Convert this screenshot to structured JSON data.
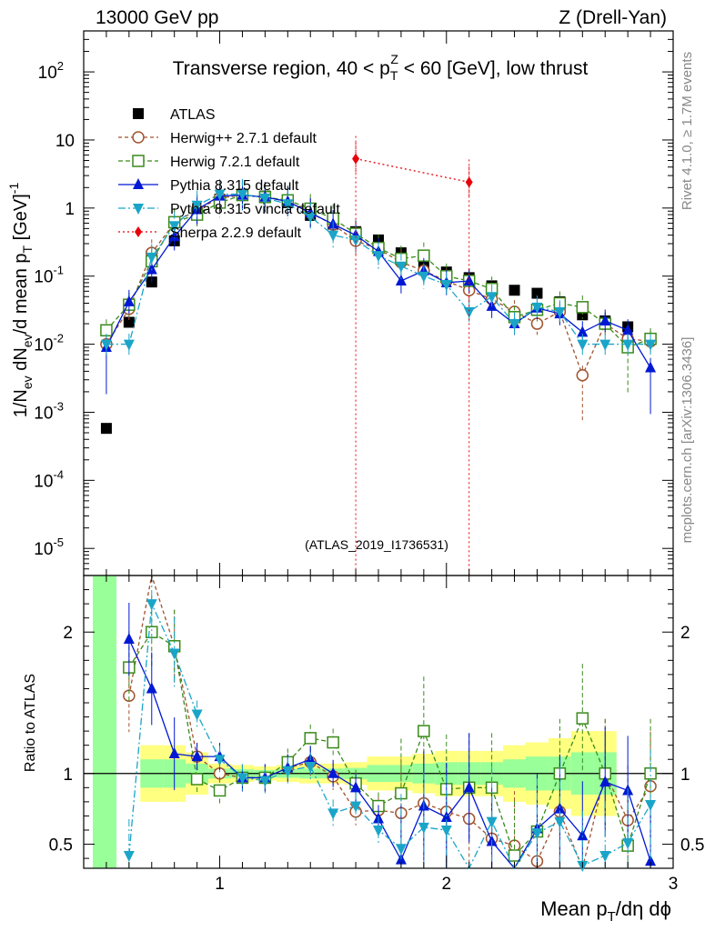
{
  "header": {
    "left": "13000 GeV pp",
    "right": "Z (Drell-Yan)"
  },
  "side_labels": {
    "rivet": "Rivet 4.1.0, ≥ 1.7M events",
    "mcplots": "mcplots.cern.ch [arXiv:1306.3436]"
  },
  "chart_data": {
    "type": "scatter",
    "title": "Transverse region, 40 < pT^Z < 60 [GeV], low thrust",
    "analysis_tag": "(ATLAS_2019_I1736531)",
    "xlabel": "Mean pT/dη dφ",
    "ylabel_main": "1/Nev dNev/d mean pT [GeV]^-1",
    "ylabel_ratio": "Ratio to ATLAS",
    "xlim": [
      0.4,
      3.0
    ],
    "ylim_main": [
      4e-06,
      400
    ],
    "ylim_ratio": [
      0.33,
      2.4
    ],
    "yscale_main": "log",
    "x_ticks": [
      "1",
      "2",
      "3"
    ],
    "y_ticks_main": [
      "10^-5",
      "10^-4",
      "10^-3",
      "10^-2",
      "10^-1",
      "1",
      "10",
      "10^2"
    ],
    "y_ticks_ratio": [
      "0.5",
      "1",
      "2"
    ],
    "x": [
      0.5,
      0.6,
      0.7,
      0.8,
      0.9,
      1.0,
      1.1,
      1.2,
      1.3,
      1.4,
      1.5,
      1.6,
      1.7,
      1.8,
      1.9,
      2.0,
      2.1,
      2.2,
      2.3,
      2.4,
      2.5,
      2.6,
      2.7,
      2.8,
      2.9
    ],
    "series": [
      {
        "name": "ATLAS",
        "color": "#000000",
        "marker": "square",
        "values": [
          0.00058,
          0.021,
          0.082,
          0.33,
          0.85,
          1.35,
          1.6,
          1.5,
          1.2,
          0.78,
          0.58,
          0.45,
          0.34,
          0.22,
          0.155,
          0.115,
          0.095,
          0.072,
          0.062,
          0.056,
          0.042,
          0.027,
          0.022,
          0.018,
          0.012
        ],
        "ratio": []
      },
      {
        "name": "Herwig++ 2.7.1 default",
        "color": "#a0522d",
        "marker": "open-circle",
        "values": [
          0.01,
          0.033,
          0.22,
          0.6,
          0.95,
          1.4,
          1.55,
          1.45,
          1.25,
          0.85,
          0.57,
          0.33,
          0.25,
          0.16,
          0.12,
          0.085,
          0.062,
          0.046,
          0.03,
          0.02,
          0.03,
          0.0035,
          0.02,
          0.012,
          0.011
        ],
        "ratio": [
          null,
          1.55,
          2.6,
          1.9,
          1.12,
          1.0,
          0.97,
          0.97,
          1.04,
          1.08,
          0.98,
          0.73,
          0.74,
          0.72,
          0.79,
          0.73,
          0.68,
          0.54,
          0.49,
          0.38,
          0.73,
          0.13,
          1.0,
          0.67,
          0.91
        ]
      },
      {
        "name": "Herwig 7.2.1 default",
        "color": "#3a8a1a",
        "marker": "open-square",
        "values": [
          0.016,
          0.038,
          0.165,
          0.62,
          0.8,
          1.2,
          1.55,
          1.45,
          1.3,
          0.98,
          0.7,
          0.42,
          0.26,
          0.18,
          0.2,
          0.1,
          0.085,
          0.065,
          0.025,
          0.032,
          0.04,
          0.035,
          0.02,
          0.009,
          0.012
        ],
        "ratio": [
          null,
          1.75,
          2.0,
          1.9,
          0.96,
          0.88,
          0.97,
          0.97,
          1.08,
          1.25,
          1.22,
          0.93,
          0.77,
          0.86,
          1.3,
          0.89,
          0.9,
          0.9,
          0.42,
          0.59,
          1.0,
          1.39,
          1.0,
          0.49,
          1.0
        ]
      },
      {
        "name": "Pythia 8.315 default",
        "color": "#0018d4",
        "marker": "triangle-up",
        "values": [
          0.009,
          0.042,
          0.125,
          0.38,
          0.95,
          1.5,
          1.55,
          1.45,
          1.25,
          0.85,
          0.58,
          0.4,
          0.23,
          0.085,
          0.12,
          0.08,
          0.085,
          0.036,
          0.02,
          0.034,
          0.028,
          0.015,
          0.022,
          0.016,
          0.0045
        ],
        "ratio": [
          null,
          1.95,
          1.6,
          1.14,
          1.12,
          1.12,
          0.97,
          0.97,
          1.04,
          1.1,
          1.0,
          0.9,
          0.68,
          0.39,
          0.77,
          0.69,
          0.9,
          0.52,
          0.32,
          0.61,
          0.75,
          0.56,
          0.94,
          0.88,
          0.38
        ]
      },
      {
        "name": "Pythia 8.315 vincia default",
        "color": "#1aa5c8",
        "marker": "triangle-down",
        "values": [
          0.01,
          0.01,
          0.19,
          0.55,
          1.1,
          1.6,
          1.6,
          1.4,
          1.15,
          0.75,
          0.4,
          0.34,
          0.2,
          0.14,
          0.1,
          0.075,
          0.03,
          0.05,
          0.02,
          0.035,
          0.03,
          0.01,
          0.01,
          0.01,
          0.01
        ],
        "ratio": [
          null,
          0.42,
          2.2,
          1.85,
          1.42,
          1.1,
          0.97,
          0.95,
          1.02,
          1.05,
          0.72,
          0.77,
          0.6,
          0.47,
          0.62,
          0.6,
          0.27,
          0.66,
          0.3,
          0.58,
          0.66,
          0.35,
          0.42,
          0.51,
          0.78
        ]
      },
      {
        "name": "Sherpa 2.2.9 default",
        "color": "#e8000a",
        "marker": "diamond",
        "values": [
          null,
          null,
          null,
          null,
          null,
          null,
          null,
          null,
          null,
          null,
          null,
          5.3,
          null,
          null,
          null,
          null,
          2.4,
          null,
          null,
          null,
          null,
          null,
          null,
          null,
          null
        ],
        "ratio": []
      }
    ],
    "bands": {
      "green_half": [
        0.1,
        0.1,
        0.07,
        0.035,
        0.03,
        0.025,
        0.03,
        0.035,
        0.035,
        0.04,
        0.06,
        0.06,
        0.07,
        0.08,
        0.08,
        0.08,
        0.1,
        0.12,
        0.12,
        0.15,
        0.15
      ],
      "yellow_half": [
        0.2,
        0.2,
        0.15,
        0.07,
        0.06,
        0.05,
        0.06,
        0.07,
        0.07,
        0.08,
        0.12,
        0.12,
        0.14,
        0.16,
        0.16,
        0.16,
        0.2,
        0.22,
        0.25,
        0.3,
        0.3
      ]
    }
  }
}
